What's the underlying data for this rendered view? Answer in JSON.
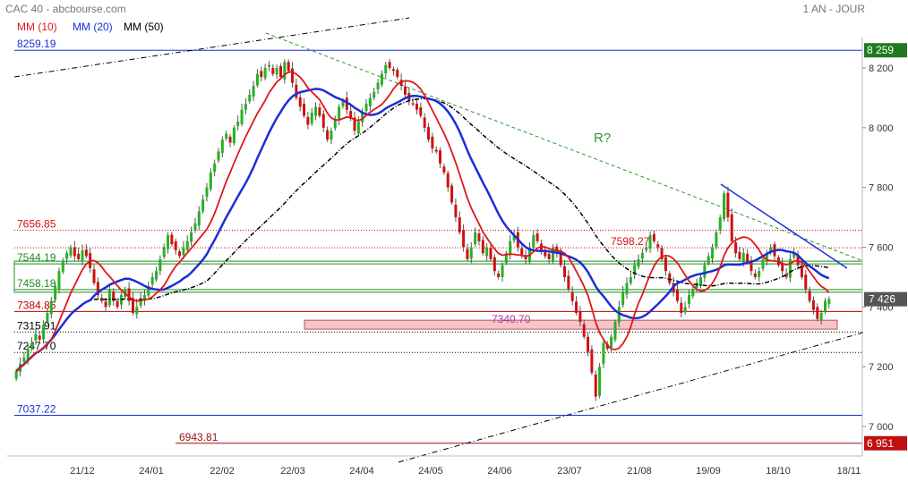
{
  "header": {
    "title": "CAC 40 - abcbourse.com",
    "period": "1 AN - JOUR",
    "legend": [
      {
        "label": "MM (10)",
        "color": "#e0161b"
      },
      {
        "label": "MM (20)",
        "color": "#1a2ed8"
      },
      {
        "label": "MM (50)",
        "color": "#000000"
      }
    ]
  },
  "annotation": {
    "text": "R?",
    "color": "#2e9b2e"
  },
  "colors": {
    "up": "#22b322",
    "down": "#d01010",
    "ma10": "#e0161b",
    "ma20": "#1a2ed8",
    "ma50": "#000000",
    "zone": "#f4c6c8"
  },
  "chart_data": {
    "type": "candlestick",
    "x_ticks": [
      "21/12",
      "24/01",
      "22/02",
      "22/03",
      "24/04",
      "24/05",
      "24/06",
      "23/07",
      "21/08",
      "19/09",
      "18/10",
      "18/11"
    ],
    "y_ticks": [
      "7 000",
      "7 200",
      "7 400",
      "7 600",
      "7 800",
      "8 000",
      "8 200"
    ],
    "ylim": [
      6930,
      8300
    ],
    "last_price_label": "7 426",
    "last_price": 7426,
    "horizontal_levels": [
      {
        "label": "8259.19",
        "value": 8259.19,
        "color": "#1a2ed8",
        "style": "solid",
        "right_label": "8 259",
        "right_color": "#1f7a1f"
      },
      {
        "label": "7656.85",
        "value": 7656.85,
        "color": "#d01010",
        "style": "dotted"
      },
      {
        "label": "7598.27",
        "value": 7598.27,
        "color": "#d01010",
        "style": "dotted"
      },
      {
        "label": "7544.19",
        "value": 7544.19,
        "color": "#1e8c1e",
        "style": "solid"
      },
      {
        "label": "7458.18",
        "value": 7458.18,
        "color": "#1e8c1e",
        "style": "solid"
      },
      {
        "label": "7384.86",
        "value": 7384.86,
        "color": "#c00000",
        "style": "solid"
      },
      {
        "label": "7340.70",
        "value": 7340.7,
        "color": "#b030b0",
        "style": "zone"
      },
      {
        "label": "7315.91",
        "value": 7315.91,
        "color": "#000000",
        "style": "dotted"
      },
      {
        "label": "7247.70",
        "value": 7247.7,
        "color": "#000000",
        "style": "dotted"
      },
      {
        "label": "7037.22",
        "value": 7037.22,
        "color": "#1a2ed8",
        "style": "solid"
      },
      {
        "label": "6943.81",
        "value": 6943.81,
        "color": "#9b1010",
        "style": "solid",
        "right_label": "6 951",
        "right_color": "#c01010"
      }
    ],
    "closes": [
      7185,
      7210,
      7230,
      7260,
      7280,
      7310,
      7290,
      7340,
      7380,
      7420,
      7470,
      7520,
      7555,
      7580,
      7600,
      7570,
      7560,
      7590,
      7570,
      7530,
      7480,
      7440,
      7420,
      7400,
      7460,
      7420,
      7400,
      7440,
      7460,
      7420,
      7380,
      7400,
      7430,
      7440,
      7470,
      7500,
      7520,
      7560,
      7600,
      7640,
      7610,
      7590,
      7570,
      7600,
      7620,
      7650,
      7680,
      7720,
      7760,
      7800,
      7850,
      7880,
      7920,
      7960,
      7980,
      7950,
      8000,
      8020,
      8060,
      8080,
      8110,
      8140,
      8180,
      8170,
      8200,
      8210,
      8180,
      8200,
      8170,
      8220,
      8190,
      8150,
      8100,
      8070,
      8040,
      8010,
      8050,
      8070,
      8040,
      8000,
      7960,
      7990,
      8030,
      8070,
      8090,
      8060,
      8030,
      7990,
      8020,
      8050,
      8080,
      8100,
      8120,
      8150,
      8180,
      8210,
      8200,
      8190,
      8170,
      8140,
      8110,
      8090,
      8080,
      8060,
      8040,
      8000,
      7960,
      7930,
      7920,
      7880,
      7850,
      7800,
      7750,
      7700,
      7650,
      7600,
      7560,
      7600,
      7650,
      7620,
      7580,
      7600,
      7560,
      7520,
      7500,
      7540,
      7580,
      7620,
      7640,
      7600,
      7570,
      7560,
      7600,
      7640,
      7620,
      7590,
      7570,
      7560,
      7600,
      7580,
      7540,
      7500,
      7460,
      7420,
      7380,
      7350,
      7300,
      7250,
      7180,
      7100,
      7200,
      7280,
      7260,
      7300,
      7350,
      7400,
      7450,
      7480,
      7500,
      7540,
      7560,
      7580,
      7600,
      7640,
      7620,
      7600,
      7560,
      7520,
      7480,
      7450,
      7420,
      7380,
      7400,
      7440,
      7460,
      7480,
      7500,
      7540,
      7570,
      7600,
      7650,
      7700,
      7780,
      7700,
      7620,
      7580,
      7560,
      7580,
      7550,
      7520,
      7500,
      7520,
      7560,
      7580,
      7600,
      7570,
      7540,
      7520,
      7500,
      7560,
      7580,
      7540,
      7500,
      7460,
      7420,
      7390,
      7360,
      7380,
      7420,
      7426
    ]
  }
}
